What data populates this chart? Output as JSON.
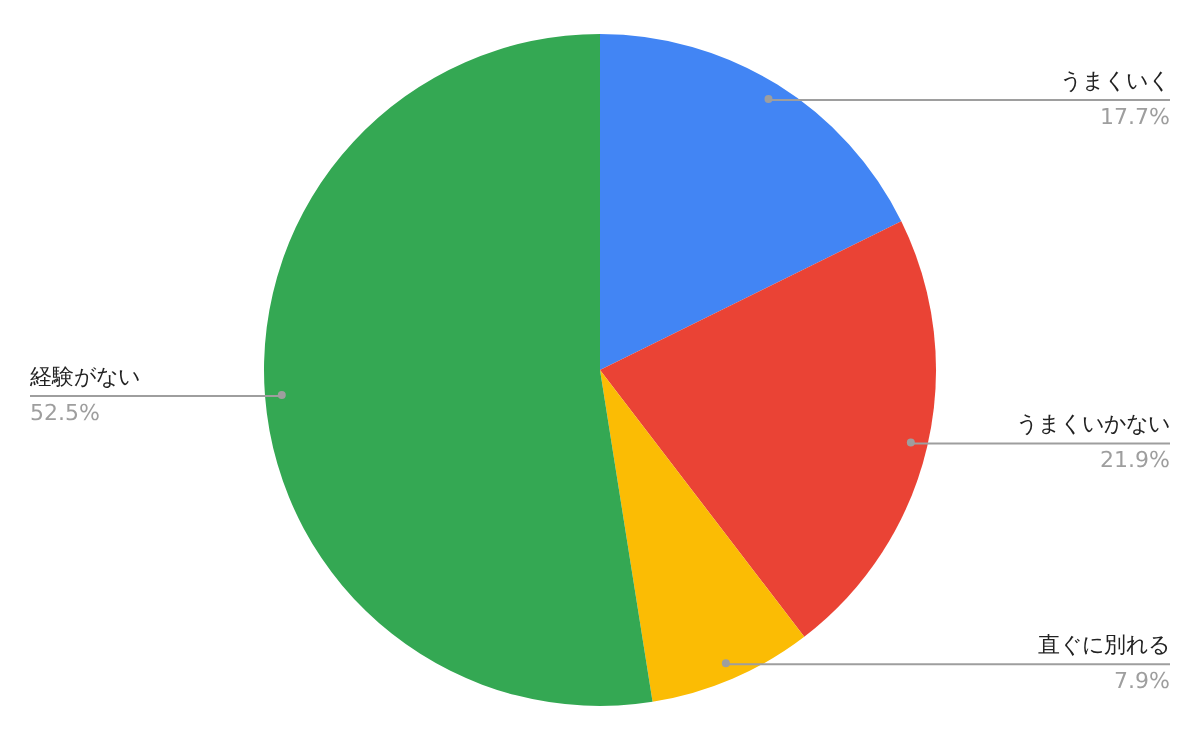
{
  "chart_data": {
    "type": "pie",
    "categories": [
      "うまくいく",
      "うまくいかない",
      "直ぐに別れる",
      "経験がない"
    ],
    "values": [
      17.7,
      21.9,
      7.9,
      52.5
    ],
    "colors": [
      "#4285f4",
      "#ea4335",
      "#fbbc04",
      "#34a853"
    ],
    "value_labels": [
      "17.7%",
      "21.9%",
      "7.9%",
      "52.5%"
    ],
    "legend": false
  }
}
